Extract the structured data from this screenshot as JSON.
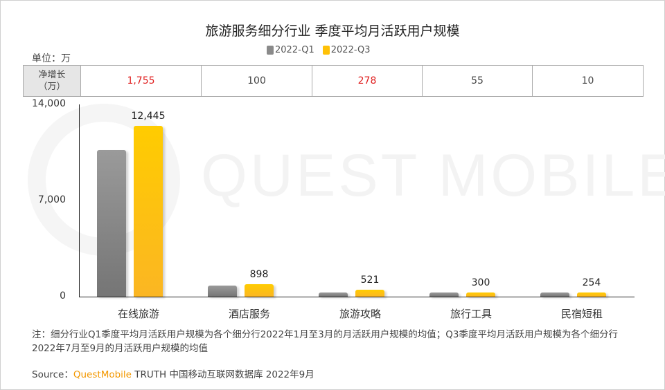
{
  "title": "旅游服务细分行业 季度平均月活跃用户规模",
  "unit": "单位：万",
  "legend": [
    {
      "label": "2022-Q1",
      "color": "#8a8a8a"
    },
    {
      "label": "2022-Q3",
      "color": "#ffc107"
    }
  ],
  "net_growth": {
    "header": "净增长（万）",
    "header_line1": "净增长",
    "header_line2": "（万）",
    "values": [
      "1,755",
      "100",
      "278",
      "55",
      "10"
    ],
    "colors": [
      "#e02020",
      "#444444",
      "#e02020",
      "#444444",
      "#444444"
    ]
  },
  "y_ticks": [
    "14,000",
    "7,000",
    "0"
  ],
  "watermark": "QUEST MOBILE",
  "note": "注：细分行业Q1季度平均月活跃用户规模为各个细分行2022年1月至3月的月活跃用户规模的均值；Q3季度平均月活跃用户规模为各个细分行2022年7月至9月的月活跃用户规模的均值",
  "source": {
    "prefix": "Source：",
    "brand": "QuestMobile",
    "rest": " TRUTH 中国移动互联网数据库 2022年9月"
  },
  "chart_data": {
    "type": "bar",
    "title": "旅游服务细分行业 季度平均月活跃用户规模",
    "xlabel": "",
    "ylabel": "单位：万",
    "ylim": [
      0,
      14000
    ],
    "yticks": [
      0,
      7000,
      14000
    ],
    "grid": false,
    "legend_position": "top",
    "categories": [
      "在线旅游",
      "酒店服务",
      "旅游攻略",
      "旅行工具",
      "民宿短租"
    ],
    "series": [
      {
        "name": "2022-Q1",
        "values": [
          10690,
          798,
          243,
          245,
          244
        ],
        "labeled": false
      },
      {
        "name": "2022-Q3",
        "values": [
          12445,
          898,
          521,
          300,
          254
        ],
        "labeled": true,
        "labels": [
          "12,445",
          "898",
          "521",
          "300",
          "254"
        ]
      }
    ],
    "net_growth": [
      1755,
      100,
      278,
      55,
      10
    ]
  }
}
